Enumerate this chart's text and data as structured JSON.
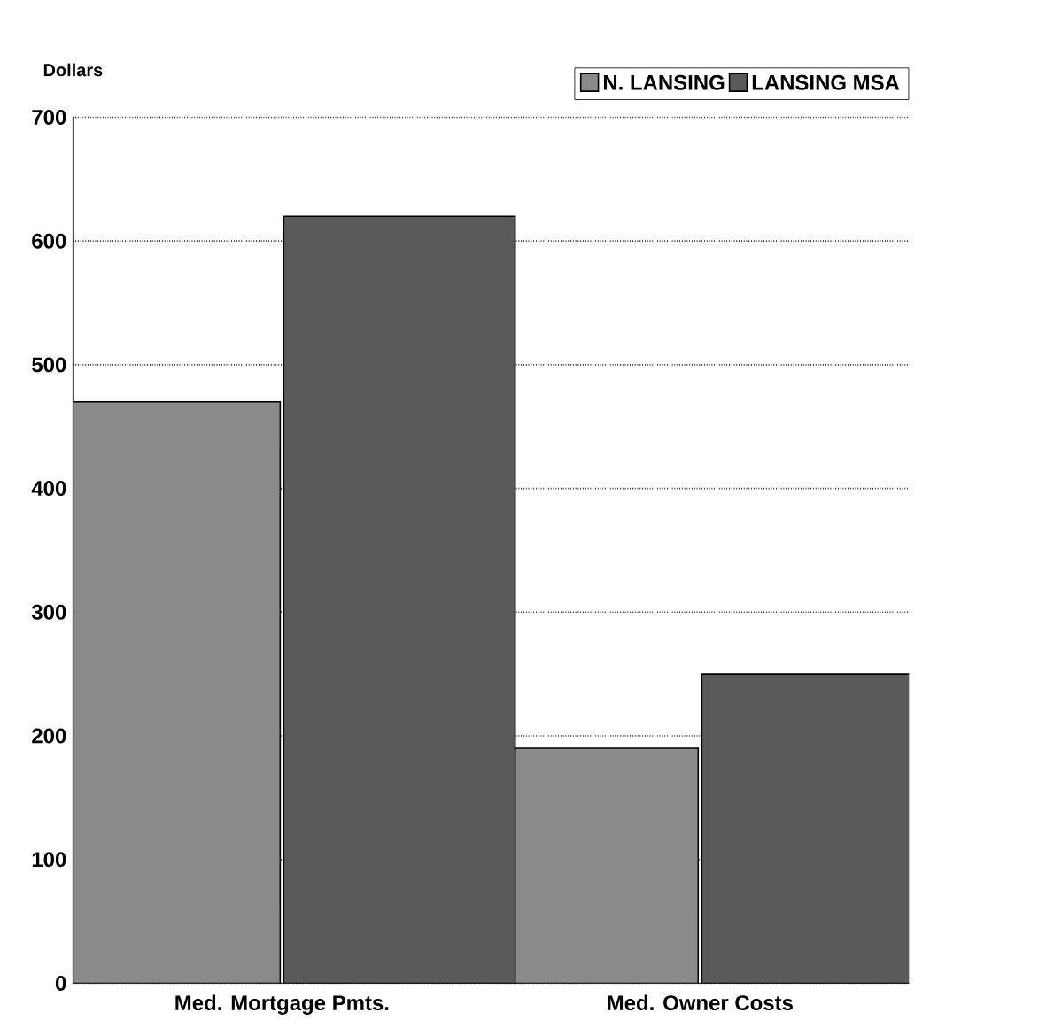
{
  "chart_data": {
    "type": "bar",
    "ylabel": "Dollars",
    "categories": [
      "Med. Mortgage Pmts.",
      "Med. Owner Costs"
    ],
    "series": [
      {
        "name": "N. LANSING",
        "color": "#8a8a8a",
        "values": [
          470,
          190
        ]
      },
      {
        "name": "LANSING MSA",
        "color": "#5a5a5a",
        "values": [
          620,
          250
        ]
      }
    ],
    "ylim": [
      0,
      700
    ],
    "yticks": [
      0,
      100,
      200,
      300,
      400,
      500,
      600,
      700
    ],
    "grid": "y",
    "legend": "top right"
  }
}
